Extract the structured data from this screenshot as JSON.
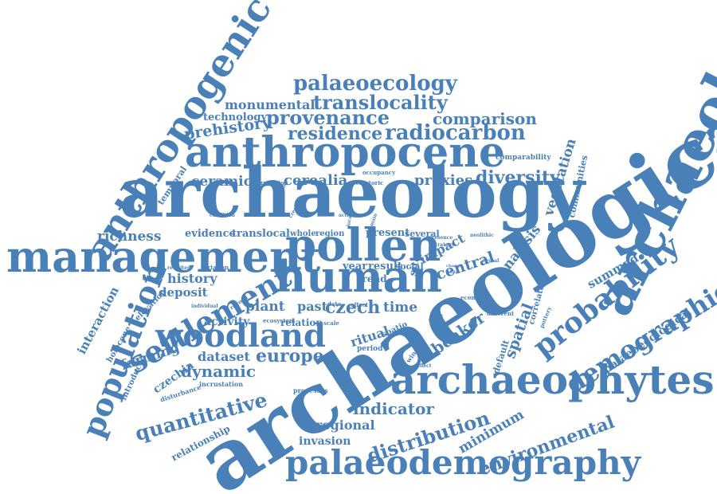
{
  "accent_color": "#4a80b8",
  "background_color": "#ffffff",
  "words": [
    {
      "id": "archaeological",
      "text": "archaeological"
    },
    {
      "id": "archaeology",
      "text": "archaeology"
    },
    {
      "id": "anthropogenic",
      "text": "anthropogenic"
    },
    {
      "id": "anthropocene",
      "text": "anthropocene"
    },
    {
      "id": "management",
      "text": "management"
    },
    {
      "id": "pollen",
      "text": "pollen"
    },
    {
      "id": "human",
      "text": "human"
    },
    {
      "id": "archaeophytes",
      "text": "archaeophytes"
    },
    {
      "id": "palaeodemography",
      "text": "palaeodemography"
    },
    {
      "id": "population",
      "text": "population"
    },
    {
      "id": "woodland",
      "text": "woodland"
    },
    {
      "id": "settlement",
      "text": "settlement"
    },
    {
      "id": "probability",
      "text": "probability"
    },
    {
      "id": "demographic",
      "text": "demographic"
    },
    {
      "id": "palaeoecology",
      "text": "palaeoecology"
    },
    {
      "id": "translocality",
      "text": "translocality"
    },
    {
      "id": "provenance",
      "text": "provenance"
    },
    {
      "id": "residence",
      "text": "residence"
    },
    {
      "id": "radiocarbon",
      "text": "radiocarbon"
    },
    {
      "id": "comparison",
      "text": "comparison"
    },
    {
      "id": "monumental",
      "text": "monumental"
    },
    {
      "id": "technology",
      "text": "technology"
    },
    {
      "id": "prehistory",
      "text": "prehistory"
    },
    {
      "id": "ceramic",
      "text": "ceramic"
    },
    {
      "id": "cerealia",
      "text": "cerealia"
    },
    {
      "id": "proxies",
      "text": "proxies"
    },
    {
      "id": "diversity",
      "text": "diversity"
    },
    {
      "id": "vegetation",
      "text": "vegetation"
    },
    {
      "id": "communities",
      "text": "communities"
    },
    {
      "id": "comparability",
      "text": "comparability"
    },
    {
      "id": "temporal",
      "text": "temporal"
    },
    {
      "id": "richness",
      "text": "richness"
    },
    {
      "id": "evidence",
      "text": "evidence"
    },
    {
      "id": "translocal",
      "text": "translocal"
    },
    {
      "id": "whole",
      "text": "whole"
    },
    {
      "id": "region",
      "text": "region"
    },
    {
      "id": "present",
      "text": "present"
    },
    {
      "id": "several",
      "text": "several"
    },
    {
      "id": "impact",
      "text": "impact"
    },
    {
      "id": "site",
      "text": "site"
    },
    {
      "id": "central",
      "text": "central"
    },
    {
      "id": "analysis",
      "text": "analysis"
    },
    {
      "id": "history",
      "text": "history"
    },
    {
      "id": "deposit",
      "text": "deposit"
    },
    {
      "id": "plant",
      "text": "plant"
    },
    {
      "id": "past",
      "text": "past"
    },
    {
      "id": "czech",
      "text": "czech"
    },
    {
      "id": "year",
      "text": "year"
    },
    {
      "id": "result",
      "text": "result"
    },
    {
      "id": "social",
      "text": "social"
    },
    {
      "id": "trend",
      "text": "trend"
    },
    {
      "id": "time",
      "text": "time"
    },
    {
      "id": "beaker",
      "text": "beaker"
    },
    {
      "id": "spatial",
      "text": "spatial"
    },
    {
      "id": "summed",
      "text": "summed"
    },
    {
      "id": "activity",
      "text": "activity"
    },
    {
      "id": "relation",
      "text": "relation"
    },
    {
      "id": "ritual",
      "text": "ritual"
    },
    {
      "id": "farming",
      "text": "farming"
    },
    {
      "id": "dataset",
      "text": "dataset"
    },
    {
      "id": "europe",
      "text": "europe"
    },
    {
      "id": "dynamic",
      "text": "dynamic"
    },
    {
      "id": "czechia",
      "text": "czechia"
    },
    {
      "id": "quantitative",
      "text": "quantitative"
    },
    {
      "id": "indicator",
      "text": "indicator"
    },
    {
      "id": "regional",
      "text": "regional"
    },
    {
      "id": "distribution",
      "text": "distribution"
    },
    {
      "id": "minimum",
      "text": "minimum"
    },
    {
      "id": "environmental",
      "text": "environmental"
    },
    {
      "id": "palaeoecological",
      "text": "palaeoecological"
    },
    {
      "id": "invasion",
      "text": "invasion"
    },
    {
      "id": "relationship",
      "text": "relationship"
    },
    {
      "id": "interaction",
      "text": "interaction"
    },
    {
      "id": "holocene",
      "text": "holocene"
    },
    {
      "id": "introduced",
      "text": "introduced"
    },
    {
      "id": "elevation",
      "text": "elevation"
    },
    {
      "id": "disturbance",
      "text": "disturbance"
    },
    {
      "id": "incrustation",
      "text": "incrustation"
    },
    {
      "id": "processes",
      "text": "processes"
    },
    {
      "id": "expansion",
      "text": "expansion"
    },
    {
      "id": "revisited",
      "text": "revisited"
    },
    {
      "id": "variation",
      "text": "variation"
    },
    {
      "id": "individual",
      "text": "individual"
    },
    {
      "id": "record",
      "text": "record"
    },
    {
      "id": "ecosystem",
      "text": "ecosystem"
    },
    {
      "id": "correlation",
      "text": "correlation"
    },
    {
      "id": "prehistoric",
      "text": "prehistoric"
    },
    {
      "id": "occupancy",
      "text": "occupancy"
    },
    {
      "id": "limitation",
      "text": "limitation"
    },
    {
      "id": "condition",
      "text": "condition"
    },
    {
      "id": "czechia_small",
      "text": "czechia"
    },
    {
      "id": "activities",
      "text": "activities"
    },
    {
      "id": "local",
      "text": "local"
    },
    {
      "id": "term",
      "text": "term"
    },
    {
      "id": "data",
      "text": "data"
    },
    {
      "id": "effect",
      "text": "effect"
    },
    {
      "id": "scale",
      "text": "scale"
    },
    {
      "id": "spatio",
      "text": "spatio"
    },
    {
      "id": "period",
      "text": "period"
    },
    {
      "id": "window",
      "text": "window"
    },
    {
      "id": "reflect",
      "text": "reflect"
    },
    {
      "id": "presence",
      "text": "presence"
    },
    {
      "id": "strategy",
      "text": "strategy"
    },
    {
      "id": "neolithic",
      "text": "neolithic"
    },
    {
      "id": "reveal",
      "text": "reveal"
    },
    {
      "id": "taxon",
      "text": "taxon"
    },
    {
      "id": "economic",
      "text": "economic"
    },
    {
      "id": "different",
      "text": "different"
    },
    {
      "id": "correlated",
      "text": "correlated"
    },
    {
      "id": "pottery",
      "text": "pottery"
    },
    {
      "id": "default",
      "text": "default"
    },
    {
      "id": "range",
      "text": "range"
    },
    {
      "id": "main",
      "text": "main"
    },
    {
      "id": "change",
      "text": "change"
    },
    {
      "id": "white",
      "text": "white"
    }
  ]
}
